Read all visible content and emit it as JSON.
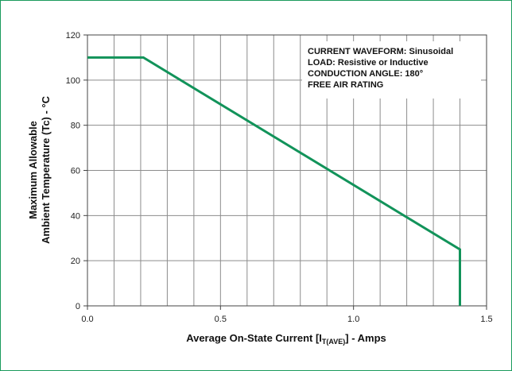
{
  "chart_data": {
    "type": "line",
    "x": [
      0.0,
      0.21,
      1.4,
      1.4
    ],
    "series": [
      {
        "values": [
          110,
          110,
          25,
          0
        ],
        "color": "#12935a"
      }
    ],
    "xlabel_main": "Average On-State Current [I",
    "xlabel_sub": "T(AVE)",
    "xlabel_end": "] - Amps",
    "ylabel_line1": "Maximum Allowable",
    "ylabel_line2": "Ambient Temperature (Tc) - °C",
    "xlim": [
      0,
      1.5
    ],
    "ylim": [
      0,
      120
    ],
    "xticks": [
      {
        "value": 0.0,
        "label": "0.0"
      },
      {
        "value": 0.5,
        "label": "0.5"
      },
      {
        "value": 1.0,
        "label": "1.0"
      },
      {
        "value": 1.5,
        "label": "1.5"
      }
    ],
    "yticks": [
      {
        "value": 0,
        "label": "0"
      },
      {
        "value": 20,
        "label": "20"
      },
      {
        "value": 40,
        "label": "40"
      },
      {
        "value": 60,
        "label": "60"
      },
      {
        "value": 80,
        "label": "80"
      },
      {
        "value": 100,
        "label": "100"
      },
      {
        "value": 120,
        "label": "120"
      }
    ],
    "x_gridlines": [
      0.1,
      0.2,
      0.3,
      0.4,
      0.5,
      0.6,
      0.7,
      0.8,
      0.9,
      1.0,
      1.1,
      1.2,
      1.3,
      1.4
    ],
    "y_gridlines": [
      20,
      40,
      60,
      80,
      100
    ],
    "grid": true,
    "annotations": [
      "CURRENT WAVEFORM: Sinusoidal",
      "LOAD: Resistive or Inductive",
      "CONDUCTION ANGLE: 180°",
      "FREE AIR RATING"
    ],
    "colors": {
      "line": "#12935a",
      "grid": "#8c8c8c",
      "frame": "#1a9a5c"
    }
  }
}
